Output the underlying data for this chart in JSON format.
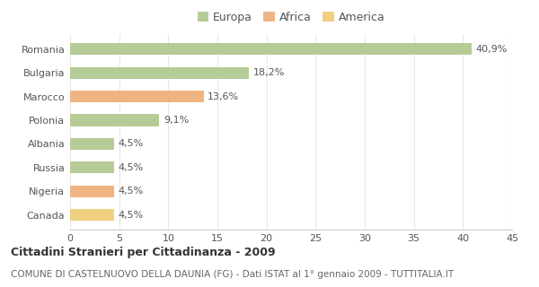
{
  "categories": [
    "Romania",
    "Bulgaria",
    "Marocco",
    "Polonia",
    "Albania",
    "Russia",
    "Nigeria",
    "Canada"
  ],
  "values": [
    40.9,
    18.2,
    13.6,
    9.1,
    4.5,
    4.5,
    4.5,
    4.5
  ],
  "labels": [
    "40,9%",
    "18,2%",
    "13,6%",
    "9,1%",
    "4,5%",
    "4,5%",
    "4,5%",
    "4,5%"
  ],
  "bar_colors": [
    "#b5cc96",
    "#b5cc96",
    "#f0b482",
    "#b5cc96",
    "#b5cc96",
    "#b5cc96",
    "#f0b482",
    "#f0d080"
  ],
  "legend_labels": [
    "Europa",
    "Africa",
    "America"
  ],
  "legend_colors": [
    "#b5cc96",
    "#f0b482",
    "#f0d080"
  ],
  "title": "Cittadini Stranieri per Cittadinanza - 2009",
  "subtitle": "COMUNE DI CASTELNUOVO DELLA DAUNIA (FG) - Dati ISTAT al 1° gennaio 2009 - TUTTITALIA.IT",
  "xlim": [
    0,
    45
  ],
  "xticks": [
    0,
    5,
    10,
    15,
    20,
    25,
    30,
    35,
    40,
    45
  ],
  "background_color": "#ffffff",
  "grid_color": "#e8e8e8",
  "bar_height": 0.5,
  "title_fontsize": 9,
  "subtitle_fontsize": 7.5,
  "label_fontsize": 8,
  "tick_fontsize": 8,
  "legend_fontsize": 9
}
